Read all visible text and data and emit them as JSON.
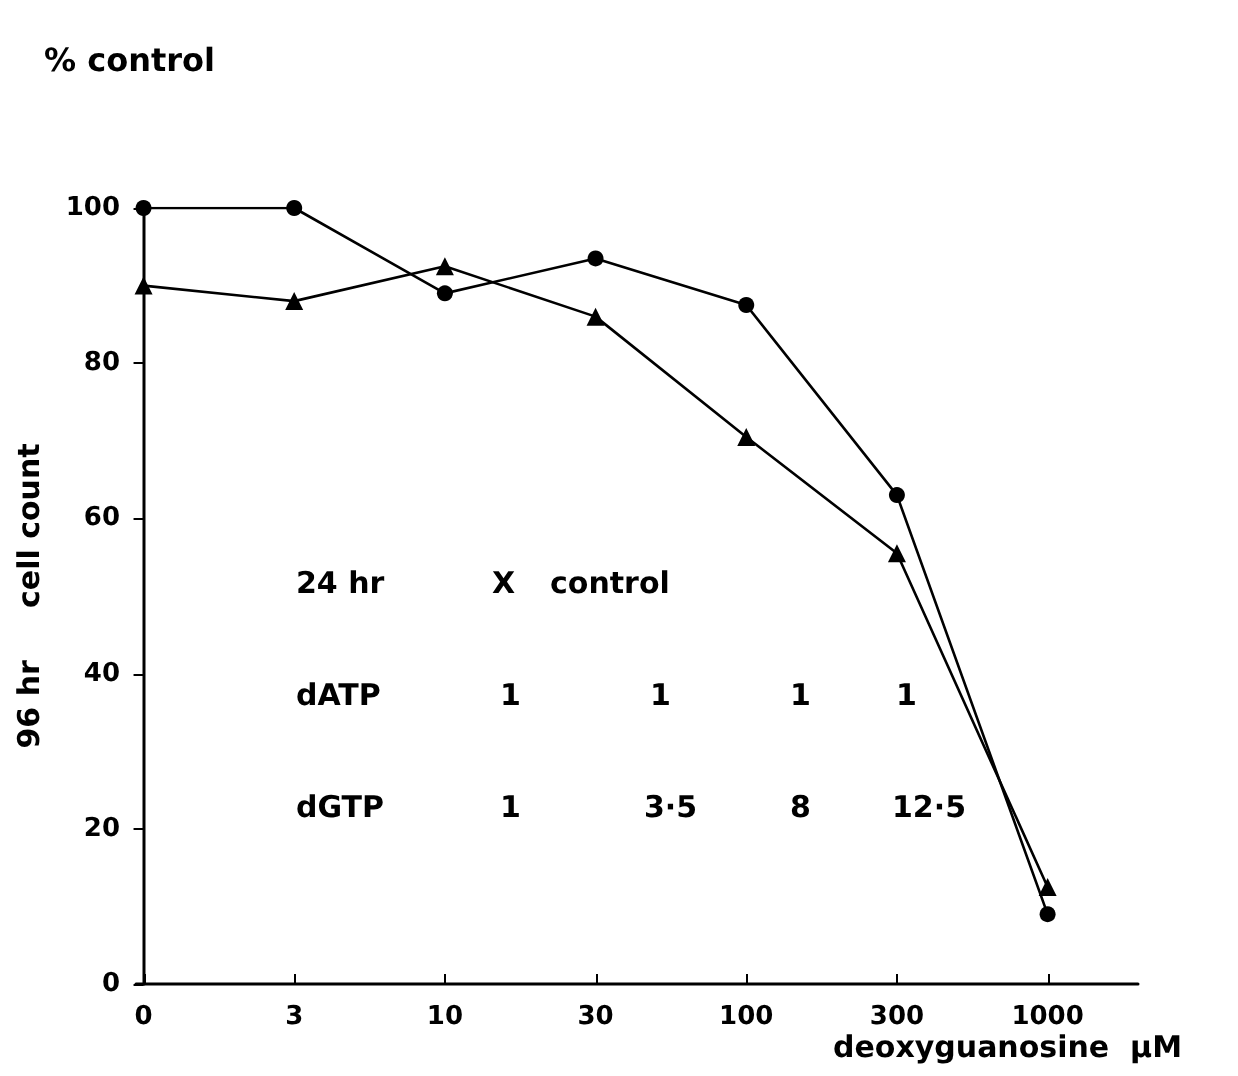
{
  "chart_data": {
    "type": "line",
    "title": "% control",
    "ylabel": "96 hr     cell count",
    "xlabel": "deoxyguanosine  μM",
    "categories": [
      "0",
      "3",
      "10",
      "30",
      "100",
      "300",
      "1000"
    ],
    "series": [
      {
        "color": "#000000",
        "marker": "circle",
        "values": [
          100,
          100,
          89,
          93.5,
          87.5,
          63,
          9
        ]
      },
      {
        "color": "#000000",
        "marker": "triangle",
        "values": [
          90,
          88,
          92.5,
          86,
          70.5,
          55.5,
          12.5
        ]
      }
    ],
    "ylim": [
      0,
      100
    ],
    "yticks": [
      0,
      20,
      40,
      60,
      80,
      100
    ],
    "grid": false,
    "line_style": "solid",
    "annotations": [
      "24 hr",
      "X",
      "control",
      "dATP",
      "1",
      "1",
      "1",
      "1",
      "dGTP",
      "1",
      "3·5",
      "8",
      "12·5"
    ]
  }
}
